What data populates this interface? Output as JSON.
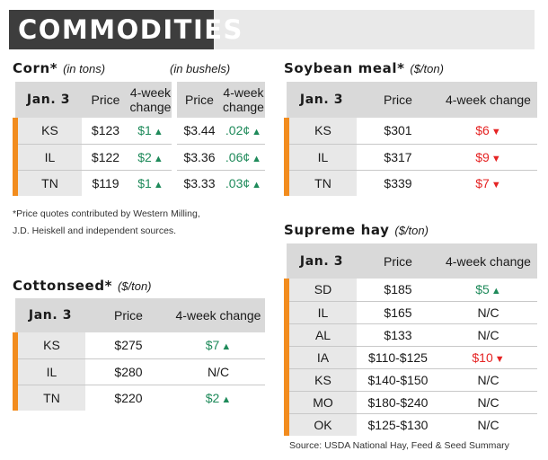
{
  "banner": {
    "title": "COMMODITIES"
  },
  "corn": {
    "title": "Corn*",
    "unit": "(in tons)",
    "unit2": "(in bushels)",
    "headers": {
      "date": "Jan. 3",
      "price": "Price",
      "change": "4-week change"
    },
    "rows": [
      {
        "state": "KS",
        "price_tons": "$123",
        "change_tons": "$1",
        "price_bu": "$3.44",
        "change_bu": ".02¢"
      },
      {
        "state": "IL",
        "price_tons": "$122",
        "change_tons": "$2",
        "price_bu": "$3.36",
        "change_bu": ".06¢"
      },
      {
        "state": "TN",
        "price_tons": "$119",
        "change_tons": "$1",
        "price_bu": "$3.33",
        "change_bu": ".03¢"
      }
    ]
  },
  "footnote": {
    "line1": "*Price quotes contributed by Western Milling,",
    "line2": "J.D. Heiskell and independent sources."
  },
  "cottonseed": {
    "title": "Cottonseed*",
    "unit": "($/ton)",
    "headers": {
      "date": "Jan. 3",
      "price": "Price",
      "change": "4-week change"
    },
    "rows": [
      {
        "state": "KS",
        "price": "$275",
        "change": "$7",
        "dir": "up"
      },
      {
        "state": "IL",
        "price": "$280",
        "change": "N/C",
        "dir": "none"
      },
      {
        "state": "TN",
        "price": "$220",
        "change": "$2",
        "dir": "up"
      }
    ]
  },
  "soybean": {
    "title": "Soybean meal*",
    "unit": "($/ton)",
    "headers": {
      "date": "Jan. 3",
      "price": "Price",
      "change": "4-week change"
    },
    "rows": [
      {
        "state": "KS",
        "price": "$301",
        "change": "$6",
        "dir": "down"
      },
      {
        "state": "IL",
        "price": "$317",
        "change": "$9",
        "dir": "down"
      },
      {
        "state": "TN",
        "price": "$339",
        "change": "$7",
        "dir": "down"
      }
    ]
  },
  "hay": {
    "title": "Supreme hay",
    "unit": "($/ton)",
    "headers": {
      "date": "Jan. 3",
      "price": "Price",
      "change": "4-week change"
    },
    "rows": [
      {
        "state": "SD",
        "price": "$185",
        "change": "$5",
        "dir": "up"
      },
      {
        "state": "IL",
        "price": "$165",
        "change": "N/C",
        "dir": "none"
      },
      {
        "state": "AL",
        "price": "$133",
        "change": "N/C",
        "dir": "none"
      },
      {
        "state": "IA",
        "price": "$110-$125",
        "change": "$10",
        "dir": "down"
      },
      {
        "state": "KS",
        "price": "$140-$150",
        "change": "N/C",
        "dir": "none"
      },
      {
        "state": "MO",
        "price": "$180-$240",
        "change": "N/C",
        "dir": "none"
      },
      {
        "state": "OK",
        "price": "$125-$130",
        "change": "N/C",
        "dir": "none"
      }
    ],
    "source": "Source: USDA National Hay, Feed & Seed Summary"
  },
  "colors": {
    "accent": "#f28c1e",
    "up": "#1e8a5a",
    "down": "#e52424",
    "header": "#d9d9d9",
    "banner": "#3d3d3d"
  },
  "icons": {
    "up": "arrow-up-icon",
    "down": "arrow-down-icon"
  }
}
